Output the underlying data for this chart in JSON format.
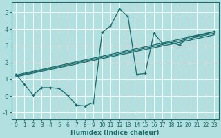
{
  "xlabel": "Humidex (Indice chaleur)",
  "background_color": "#b2dfdf",
  "grid_color": "#ffffff",
  "line_color": "#1a6b6b",
  "xlim": [
    -0.5,
    23.5
  ],
  "ylim": [
    -1.4,
    5.6
  ],
  "xticks": [
    0,
    1,
    2,
    3,
    4,
    5,
    6,
    7,
    8,
    9,
    10,
    11,
    12,
    13,
    14,
    15,
    16,
    17,
    18,
    19,
    20,
    21,
    22,
    23
  ],
  "yticks": [
    -1,
    0,
    1,
    2,
    3,
    4,
    5
  ],
  "curve1_x": [
    0,
    1,
    2,
    3,
    4,
    5,
    6,
    7,
    8,
    9,
    10,
    11,
    12,
    13,
    14,
    15,
    16,
    17,
    18,
    19,
    20,
    21,
    22,
    23
  ],
  "curve1_y": [
    1.3,
    0.7,
    0.05,
    0.5,
    0.5,
    0.45,
    0.05,
    -0.55,
    -0.6,
    -0.4,
    3.8,
    4.2,
    5.2,
    4.75,
    1.3,
    1.35,
    3.75,
    3.15,
    3.2,
    3.05,
    3.55,
    3.6,
    3.7,
    3.85
  ],
  "trend1_x": [
    0,
    23
  ],
  "trend1_y": [
    1.25,
    3.85
  ],
  "trend2_x": [
    0,
    23
  ],
  "trend2_y": [
    1.2,
    3.75
  ],
  "trend3_x": [
    0,
    23
  ],
  "trend3_y": [
    1.15,
    3.65
  ]
}
